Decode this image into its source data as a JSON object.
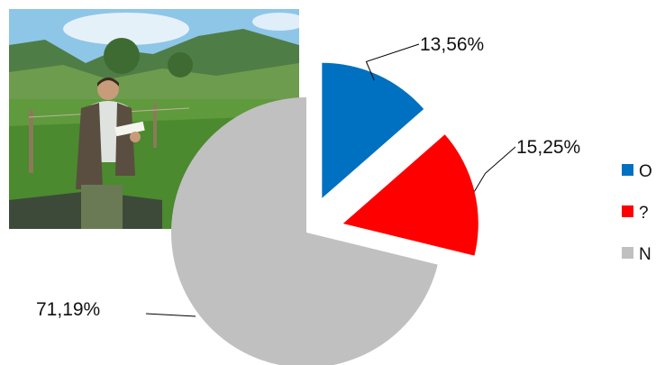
{
  "photo": {
    "icon": "field-worker-photo",
    "colors": {
      "sky": "#8ec6e8",
      "mountain": "#4f7d46",
      "grass": "#5f9a3c",
      "water": "#3d4a3a",
      "vest": "#5a4e40",
      "shirt": "#dfe3df",
      "pants": "#6a7a55"
    }
  },
  "chart_data": {
    "type": "pie",
    "title": "",
    "slices": [
      {
        "label": "O",
        "value": 13.56,
        "value_label": "13,56%",
        "color": "#0070c0",
        "exploded": true
      },
      {
        "label": "?",
        "value": 15.25,
        "value_label": "15,25%",
        "color": "#ff0000",
        "exploded": true
      },
      {
        "label": "N",
        "value": 71.19,
        "value_label": "71,19%",
        "color": "#c0c0c0",
        "exploded": false
      }
    ],
    "legend_position": "right",
    "data_labels": "outside-with-leader-lines"
  }
}
